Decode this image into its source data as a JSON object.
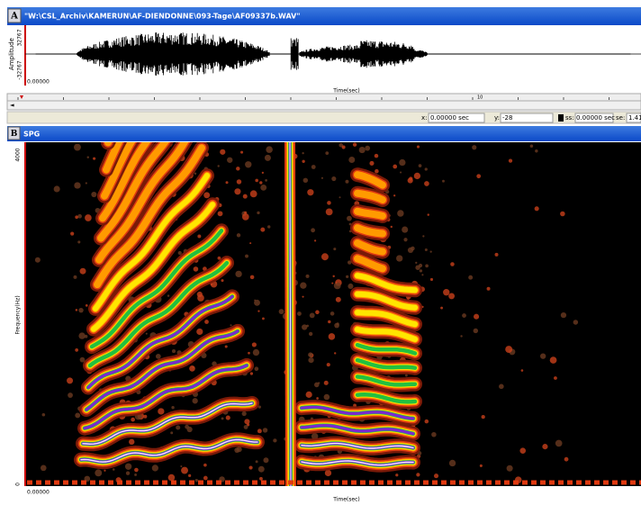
{
  "panel_a": {
    "label": "A",
    "title": "\"W:\\CSL_Archiv\\KAMERUN\\AF-DIENDONNE\\093-Tage\\AF09337b.WAV\"",
    "y_axis_label": "Amplitude",
    "y_max": "32767",
    "y_min": "-32767",
    "x_start": "0.00000",
    "x_axis_label": "Time(sec)"
  },
  "ruler": {
    "mark": "10"
  },
  "status": {
    "x_label": "x:",
    "x_value": "0.00000 sec",
    "y_label": "y:",
    "y_value": "-28",
    "ss_label": "ss:",
    "ss_value": "0.00000 sec",
    "se_label": "se:",
    "se_value": "1.41"
  },
  "panel_b": {
    "label": "B",
    "title": "SPG",
    "y_axis_label": "Frequency(Hz)",
    "y_max": "4000",
    "y_min": "0",
    "x_start": "0.00000",
    "x_axis_label": "Time(sec)"
  }
}
